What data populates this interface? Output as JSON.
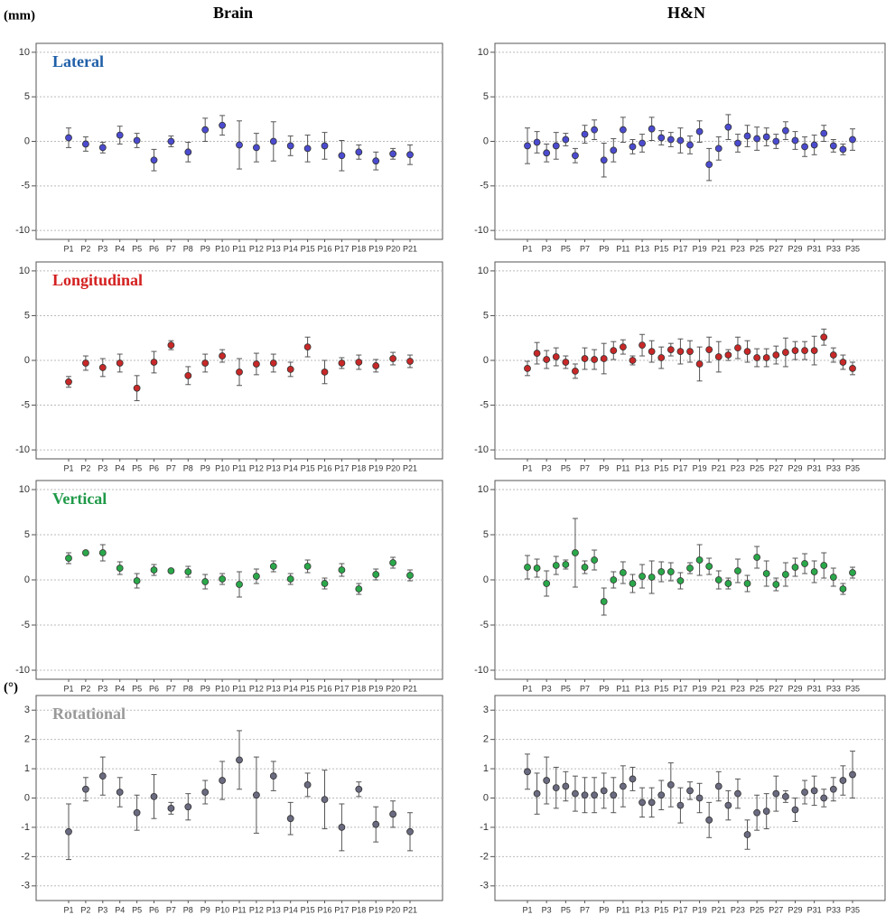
{
  "figure": {
    "columns": [
      "Brain",
      "H&N"
    ],
    "units": [
      "(mm)",
      "(°)"
    ]
  },
  "chart_data": [
    {
      "type": "errorbar",
      "title": "Lateral",
      "title_color": "#1f5fa8",
      "color": "#4b4bd0",
      "categories": [
        "P1",
        "P2",
        "P3",
        "P4",
        "P5",
        "P6",
        "P7",
        "P8",
        "P9",
        "P10",
        "P11",
        "P12",
        "P13",
        "P14",
        "P15",
        "P16",
        "P17",
        "P18",
        "P19",
        "P20",
        "P21"
      ],
      "values": [
        0.4,
        -0.3,
        -0.7,
        0.7,
        0.1,
        -2.1,
        0.0,
        -1.2,
        1.3,
        1.8,
        -0.4,
        -0.7,
        0.0,
        -0.5,
        -0.8,
        -0.5,
        -1.6,
        -1.2,
        -2.2,
        -1.4,
        -1.5
      ],
      "errors": [
        1.1,
        0.8,
        0.6,
        1.0,
        0.8,
        1.2,
        0.6,
        1.1,
        1.3,
        1.1,
        2.7,
        1.6,
        2.2,
        1.1,
        1.5,
        1.5,
        1.7,
        0.8,
        1.0,
        0.6,
        1.1
      ],
      "ylim": [
        -11,
        11
      ],
      "yticks": [
        10,
        5,
        0,
        -5,
        -10
      ],
      "grid": true
    },
    {
      "type": "errorbar",
      "color": "#4b4bd0",
      "categories": [
        "P1",
        null,
        "P3",
        null,
        "P5",
        null,
        "P7",
        null,
        "P9",
        null,
        "P11",
        null,
        "P13",
        null,
        "P15",
        null,
        "P17",
        null,
        "P19",
        null,
        "P21",
        null,
        "P23",
        null,
        "P25",
        null,
        "P27",
        null,
        "P29",
        null,
        "P31",
        null,
        "P33",
        null,
        "P35"
      ],
      "values": [
        -0.5,
        -0.1,
        -1.3,
        -0.5,
        0.2,
        -1.6,
        0.8,
        1.3,
        -2.1,
        -1.0,
        1.3,
        -0.6,
        -0.2,
        1.4,
        0.4,
        0.2,
        0.1,
        -0.4,
        1.1,
        -2.6,
        -0.8,
        1.6,
        -0.2,
        0.6,
        0.3,
        0.5,
        0.0,
        1.2,
        0.1,
        -0.6,
        -0.4,
        0.9,
        -0.5,
        -0.9,
        0.2
      ],
      "errors": [
        2.0,
        1.2,
        1.0,
        1.5,
        0.7,
        0.8,
        1.0,
        1.1,
        1.9,
        1.3,
        1.4,
        0.8,
        1.0,
        1.3,
        0.8,
        0.8,
        1.4,
        1.0,
        1.2,
        1.8,
        1.3,
        1.4,
        1.0,
        1.2,
        1.3,
        1.0,
        0.8,
        1.0,
        1.0,
        1.1,
        1.1,
        0.9,
        0.7,
        0.6,
        1.2
      ],
      "ylim": [
        -11,
        11
      ],
      "yticks": [
        10,
        5,
        0,
        -5,
        -10
      ],
      "grid": true
    },
    {
      "type": "errorbar",
      "title": "Longitudinal",
      "title_color": "#d42020",
      "color": "#c82828",
      "categories": [
        "P1",
        "P2",
        "P3",
        "P4",
        "P5",
        "P6",
        "P7",
        "P8",
        "P9",
        "P10",
        "P11",
        "P12",
        "P13",
        "P14",
        "P15",
        "P16",
        "P17",
        "P18",
        "P19",
        "P20",
        "P21"
      ],
      "values": [
        -2.4,
        -0.3,
        -0.8,
        -0.3,
        -3.1,
        -0.2,
        1.7,
        -1.7,
        -0.3,
        0.5,
        -1.3,
        -0.4,
        -0.3,
        -1.0,
        1.5,
        -1.3,
        -0.3,
        -0.2,
        -0.6,
        0.2,
        -0.1
      ],
      "errors": [
        0.6,
        0.8,
        1.0,
        1.0,
        1.4,
        1.2,
        0.5,
        1.0,
        1.0,
        0.7,
        1.5,
        1.2,
        1.0,
        0.8,
        1.1,
        1.3,
        0.6,
        0.8,
        0.7,
        0.7,
        0.7
      ],
      "ylim": [
        -11,
        11
      ],
      "yticks": [
        10,
        5,
        0,
        -5,
        -10
      ],
      "grid": true
    },
    {
      "type": "errorbar",
      "color": "#c82828",
      "categories": [
        "P1",
        null,
        "P3",
        null,
        "P5",
        null,
        "P7",
        null,
        "P9",
        null,
        "P11",
        null,
        "P13",
        null,
        "P15",
        null,
        "P17",
        null,
        "P19",
        null,
        "P21",
        null,
        "P23",
        null,
        "P25",
        null,
        "P27",
        null,
        "P29",
        null,
        "P31",
        null,
        "P33",
        null,
        "P35"
      ],
      "values": [
        -0.9,
        0.8,
        0.1,
        0.4,
        -0.2,
        -1.2,
        0.2,
        0.1,
        0.2,
        1.1,
        1.5,
        0.0,
        1.7,
        1.0,
        0.3,
        1.2,
        1.0,
        1.0,
        -0.4,
        1.2,
        0.4,
        0.6,
        1.4,
        1.0,
        0.3,
        0.3,
        0.6,
        0.9,
        1.1,
        1.1,
        1.1,
        2.6,
        0.6,
        -0.2,
        -0.9
      ],
      "errors": [
        0.8,
        1.2,
        1.0,
        1.0,
        0.7,
        0.8,
        1.2,
        1.1,
        1.7,
        1.0,
        0.8,
        0.5,
        1.2,
        1.2,
        1.2,
        0.7,
        1.4,
        1.2,
        1.9,
        1.4,
        1.7,
        0.6,
        1.2,
        1.2,
        1.0,
        1.0,
        1.0,
        1.6,
        1.0,
        1.0,
        1.6,
        0.9,
        0.8,
        0.8,
        0.7
      ],
      "ylim": [
        -11,
        11
      ],
      "yticks": [
        10,
        5,
        0,
        -5,
        -10
      ],
      "grid": true
    },
    {
      "type": "errorbar",
      "title": "Vertical",
      "title_color": "#1f9a48",
      "color": "#2aa84a",
      "categories": [
        "P1",
        "P2",
        "P3",
        "P4",
        "P5",
        "P6",
        "P7",
        "P8",
        "P9",
        "P10",
        "P11",
        "P12",
        "P13",
        "P14",
        "P15",
        "P16",
        "P17",
        "P18",
        "P19",
        "P20",
        "P21"
      ],
      "values": [
        2.4,
        3.0,
        3.0,
        1.3,
        -0.1,
        1.1,
        1.0,
        0.9,
        -0.2,
        0.1,
        -0.5,
        0.4,
        1.5,
        0.1,
        1.5,
        -0.4,
        1.1,
        -1.0,
        0.6,
        1.9,
        0.5
      ],
      "errors": [
        0.6,
        0.2,
        0.9,
        0.7,
        0.8,
        0.6,
        0.2,
        0.6,
        0.8,
        0.6,
        1.4,
        0.8,
        0.6,
        0.6,
        0.7,
        0.6,
        0.7,
        0.6,
        0.6,
        0.6,
        0.6
      ],
      "ylim": [
        -11,
        11
      ],
      "yticks": [
        10,
        5,
        0,
        -5,
        -10
      ],
      "grid": true
    },
    {
      "type": "errorbar",
      "color": "#2aa84a",
      "categories": [
        "P1",
        null,
        "P3",
        null,
        "P5",
        null,
        "P7",
        null,
        "P9",
        null,
        "P11",
        null,
        "P13",
        null,
        "P15",
        null,
        "P17",
        null,
        "P19",
        null,
        "P21",
        null,
        "P23",
        null,
        "P25",
        null,
        "P27",
        null,
        "P29",
        null,
        "P31",
        null,
        "P33",
        null,
        "P35"
      ],
      "values": [
        1.4,
        1.3,
        -0.4,
        1.6,
        1.7,
        3.0,
        1.4,
        2.2,
        -2.4,
        0.0,
        0.8,
        -0.4,
        0.4,
        0.3,
        0.9,
        0.9,
        -0.1,
        1.3,
        2.2,
        1.5,
        0.0,
        -0.4,
        1.0,
        -0.4,
        2.5,
        0.7,
        -0.5,
        0.6,
        1.4,
        1.8,
        0.9,
        1.6,
        0.3,
        -1.0,
        0.8
      ],
      "errors": [
        1.3,
        1.0,
        1.4,
        1.0,
        0.5,
        3.8,
        0.7,
        1.1,
        1.5,
        0.9,
        1.2,
        1.0,
        1.3,
        1.8,
        1.1,
        1.0,
        0.9,
        0.6,
        1.7,
        0.9,
        1.0,
        0.6,
        1.3,
        0.9,
        1.2,
        1.4,
        0.7,
        1.3,
        1.0,
        1.1,
        1.2,
        1.4,
        1.0,
        0.6,
        0.6
      ],
      "ylim": [
        -11,
        11
      ],
      "yticks": [
        10,
        5,
        0,
        -5,
        -10
      ],
      "grid": true
    },
    {
      "type": "errorbar",
      "title": "Rotational",
      "title_color": "#999999",
      "color": "#6a6a80",
      "categories": [
        "P1",
        "P2",
        "P3",
        "P4",
        "P5",
        "P6",
        "P7",
        "P8",
        "P9",
        "P10",
        "P11",
        "P12",
        "P13",
        "P14",
        "P15",
        "P16",
        "P17",
        "P18",
        "P19",
        "P20",
        "P21"
      ],
      "values": [
        -1.15,
        0.3,
        0.75,
        0.2,
        -0.5,
        0.05,
        -0.35,
        -0.3,
        0.2,
        0.6,
        1.3,
        0.1,
        0.75,
        -0.7,
        0.45,
        -0.05,
        -1.0,
        0.3,
        -0.9,
        -0.55,
        -1.15
      ],
      "errors": [
        0.95,
        0.4,
        0.65,
        0.5,
        0.6,
        0.75,
        0.2,
        0.45,
        0.4,
        0.65,
        1.0,
        1.3,
        0.5,
        0.55,
        0.4,
        1.0,
        0.8,
        0.25,
        0.6,
        0.45,
        0.65
      ],
      "ylim": [
        -3.5,
        3.5
      ],
      "yticks": [
        3,
        2,
        1,
        0,
        -1,
        -2,
        -3
      ],
      "grid": true
    },
    {
      "type": "errorbar",
      "color": "#6a6a80",
      "categories": [
        "P1",
        null,
        "P3",
        null,
        "P5",
        null,
        "P7",
        null,
        "P9",
        null,
        "P11",
        null,
        "P13",
        null,
        "P15",
        null,
        "P17",
        null,
        "P19",
        null,
        "P21",
        null,
        "P23",
        null,
        "P25",
        null,
        "P27",
        null,
        "P29",
        null,
        "P31",
        null,
        "P33",
        null,
        "P35"
      ],
      "values": [
        0.9,
        0.15,
        0.6,
        0.35,
        0.4,
        0.15,
        0.1,
        0.1,
        0.25,
        0.1,
        0.4,
        0.65,
        -0.15,
        -0.15,
        0.1,
        0.45,
        -0.25,
        0.25,
        0.0,
        -0.75,
        0.4,
        -0.25,
        0.15,
        -1.25,
        -0.5,
        -0.45,
        0.15,
        0.05,
        -0.4,
        0.2,
        0.25,
        0.0,
        0.3,
        0.6,
        0.8
      ],
      "errors": [
        0.6,
        0.7,
        0.8,
        0.7,
        0.5,
        0.6,
        0.6,
        0.6,
        0.6,
        0.6,
        0.7,
        0.4,
        0.5,
        0.5,
        0.5,
        0.75,
        0.6,
        0.3,
        0.5,
        0.6,
        0.5,
        0.5,
        0.5,
        0.5,
        0.6,
        0.6,
        0.6,
        0.2,
        0.4,
        0.4,
        0.5,
        0.3,
        0.4,
        0.5,
        0.8
      ],
      "ylim": [
        -3.5,
        3.5
      ],
      "yticks": [
        3,
        2,
        1,
        0,
        -1,
        -2,
        -3
      ],
      "grid": true
    }
  ]
}
